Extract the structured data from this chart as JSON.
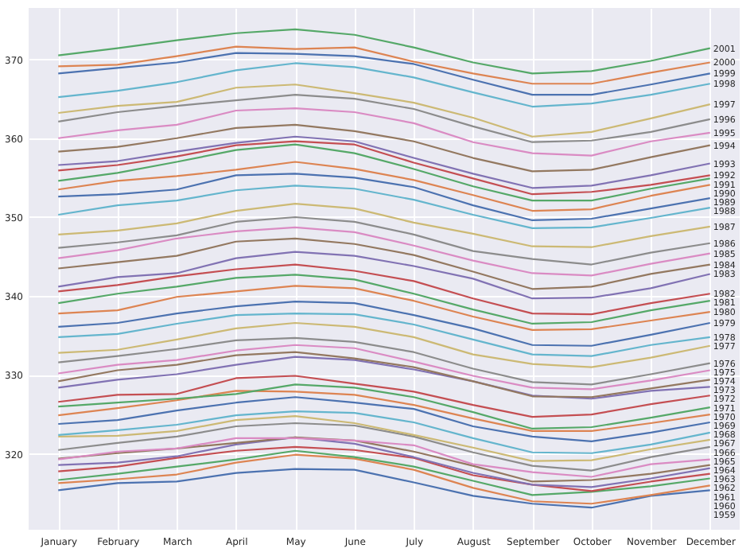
{
  "chart_data": {
    "type": "line",
    "categories": [
      "January",
      "February",
      "March",
      "April",
      "May",
      "June",
      "July",
      "August",
      "September",
      "October",
      "November",
      "December"
    ],
    "ylim": [
      310.4,
      376.5
    ],
    "yticks": [
      320,
      330,
      340,
      350,
      360,
      370
    ],
    "grid": true,
    "series": [
      {
        "name": "1959",
        "color": "#4c72b0",
        "values": [
          315.4,
          316.3,
          316.5,
          317.6,
          318.1,
          318.0,
          316.4,
          314.7,
          313.7,
          313.2,
          314.7,
          315.4
        ]
      },
      {
        "name": "1960",
        "color": "#dd8452",
        "values": [
          316.3,
          316.8,
          317.4,
          318.9,
          319.9,
          319.4,
          318.0,
          315.7,
          314.0,
          313.7,
          314.8,
          316.0
        ]
      },
      {
        "name": "1961",
        "color": "#55a868",
        "values": [
          316.7,
          317.5,
          318.4,
          319.3,
          320.4,
          319.6,
          318.4,
          316.6,
          314.8,
          315.2,
          315.9,
          316.9
        ]
      },
      {
        "name": "1962",
        "color": "#c44e52",
        "values": [
          317.8,
          318.4,
          319.5,
          320.4,
          320.9,
          320.5,
          319.5,
          317.3,
          316.1,
          315.3,
          316.5,
          317.5
        ]
      },
      {
        "name": "1963",
        "color": "#8172b3",
        "values": [
          318.6,
          318.9,
          319.7,
          321.2,
          322.1,
          321.3,
          319.6,
          317.6,
          316.1,
          315.8,
          316.9,
          318.2
        ]
      },
      {
        "name": "1964",
        "color": "#937860",
        "values": [
          319.4,
          320.1,
          320.7,
          321.4,
          322.1,
          321.7,
          320.3,
          318.5,
          316.5,
          316.7,
          317.5,
          318.6
        ]
      },
      {
        "name": "1965",
        "color": "#da8bc3",
        "values": [
          319.3,
          320.3,
          320.7,
          322.0,
          322.0,
          321.7,
          321.1,
          318.7,
          317.7,
          317.1,
          318.7,
          319.3
        ]
      },
      {
        "name": "1966",
        "color": "#8c8c8c",
        "values": [
          320.5,
          321.4,
          322.2,
          323.5,
          323.9,
          323.6,
          322.2,
          320.2,
          318.5,
          317.9,
          319.6,
          320.9
        ]
      },
      {
        "name": "1967",
        "color": "#ccb974",
        "values": [
          322.2,
          322.3,
          322.9,
          324.3,
          324.8,
          323.9,
          322.4,
          320.8,
          319.1,
          319.2,
          320.6,
          321.8
        ]
      },
      {
        "name": "1968",
        "color": "#64b5cd",
        "values": [
          322.4,
          323.0,
          323.7,
          324.9,
          325.4,
          325.2,
          324.0,
          322.0,
          320.2,
          320.1,
          321.2,
          322.7
        ]
      },
      {
        "name": "1969",
        "color": "#4c72b0",
        "values": [
          323.8,
          324.3,
          325.5,
          326.5,
          327.2,
          326.5,
          325.7,
          323.5,
          322.2,
          321.6,
          322.7,
          324.0
        ]
      },
      {
        "name": "1970",
        "color": "#dd8452",
        "values": [
          324.9,
          325.8,
          326.8,
          328.0,
          327.9,
          327.5,
          326.2,
          324.5,
          322.9,
          322.9,
          323.9,
          325.0
        ]
      },
      {
        "name": "1971",
        "color": "#55a868",
        "values": [
          326.0,
          326.5,
          327.0,
          327.6,
          328.8,
          328.4,
          327.2,
          325.3,
          323.2,
          323.4,
          324.6,
          325.9
        ]
      },
      {
        "name": "1972",
        "color": "#c44e52",
        "values": [
          326.6,
          327.5,
          327.6,
          329.6,
          329.9,
          328.9,
          327.9,
          326.2,
          324.7,
          325.0,
          326.3,
          327.4
        ]
      },
      {
        "name": "1973",
        "color": "#8172b3",
        "values": [
          328.4,
          329.4,
          330.1,
          331.3,
          332.3,
          331.9,
          330.7,
          329.2,
          327.4,
          327.0,
          328.0,
          328.5
        ]
      },
      {
        "name": "1974",
        "color": "#937860",
        "values": [
          329.2,
          330.6,
          331.3,
          332.5,
          332.9,
          332.1,
          331.0,
          329.2,
          327.3,
          327.2,
          328.3,
          329.4
        ]
      },
      {
        "name": "1975",
        "color": "#da8bc3",
        "values": [
          330.2,
          331.3,
          331.9,
          333.1,
          333.8,
          333.4,
          331.7,
          329.9,
          328.4,
          328.2,
          329.3,
          330.6
        ]
      },
      {
        "name": "1976",
        "color": "#8c8c8c",
        "values": [
          331.6,
          332.4,
          333.3,
          334.4,
          334.7,
          334.2,
          332.9,
          330.8,
          329.1,
          328.8,
          330.1,
          331.5
        ]
      },
      {
        "name": "1977",
        "color": "#ccb974",
        "values": [
          332.8,
          333.2,
          334.5,
          335.9,
          336.6,
          336.1,
          334.8,
          332.6,
          331.4,
          331.0,
          332.2,
          333.7
        ]
      },
      {
        "name": "1978",
        "color": "#64b5cd",
        "values": [
          334.8,
          335.2,
          336.5,
          337.6,
          337.8,
          337.7,
          336.4,
          334.5,
          332.6,
          332.4,
          333.8,
          334.8
        ]
      },
      {
        "name": "1979",
        "color": "#4c72b0",
        "values": [
          336.1,
          336.6,
          337.8,
          338.7,
          339.3,
          339.1,
          337.6,
          335.9,
          333.8,
          333.7,
          335.1,
          336.6
        ]
      },
      {
        "name": "1980",
        "color": "#dd8452",
        "values": [
          337.8,
          338.2,
          339.9,
          340.6,
          341.3,
          341.0,
          339.4,
          337.4,
          335.7,
          335.8,
          336.9,
          338.0
        ]
      },
      {
        "name": "1981",
        "color": "#55a868",
        "values": [
          339.1,
          340.3,
          341.2,
          342.3,
          342.7,
          342.1,
          340.3,
          338.3,
          336.5,
          336.7,
          338.2,
          339.4
        ]
      },
      {
        "name": "1982",
        "color": "#c44e52",
        "values": [
          340.6,
          341.4,
          342.5,
          343.4,
          344.0,
          343.2,
          341.9,
          339.7,
          337.8,
          337.7,
          339.1,
          340.3
        ]
      },
      {
        "name": "1983",
        "color": "#8172b3",
        "values": [
          341.2,
          342.4,
          342.9,
          344.8,
          345.6,
          345.1,
          343.8,
          342.2,
          339.7,
          339.8,
          341.0,
          342.8
        ]
      },
      {
        "name": "1984",
        "color": "#937860",
        "values": [
          343.5,
          344.3,
          345.1,
          346.9,
          347.3,
          346.6,
          345.2,
          343.1,
          340.9,
          341.2,
          342.8,
          344.0
        ]
      },
      {
        "name": "1985",
        "color": "#da8bc3",
        "values": [
          344.8,
          345.8,
          347.3,
          348.2,
          348.7,
          348.1,
          346.4,
          344.5,
          342.9,
          342.6,
          344.1,
          345.4
        ]
      },
      {
        "name": "1986",
        "color": "#8c8c8c",
        "values": [
          346.1,
          346.8,
          347.7,
          349.4,
          350.0,
          349.4,
          347.8,
          345.7,
          344.7,
          344.0,
          345.5,
          346.7
        ]
      },
      {
        "name": "1987",
        "color": "#ccb974",
        "values": [
          347.8,
          348.3,
          349.2,
          350.8,
          351.7,
          351.1,
          349.3,
          347.9,
          346.3,
          346.2,
          347.6,
          348.8
        ]
      },
      {
        "name": "1988",
        "color": "#64b5cd",
        "values": [
          350.3,
          351.5,
          352.1,
          353.4,
          354.0,
          353.6,
          352.2,
          350.3,
          348.6,
          348.7,
          349.9,
          351.2
        ]
      },
      {
        "name": "1989",
        "color": "#4c72b0",
        "values": [
          352.6,
          352.9,
          353.5,
          355.3,
          355.5,
          355.0,
          353.8,
          351.5,
          349.6,
          349.8,
          351.1,
          352.4
        ]
      },
      {
        "name": "1990",
        "color": "#dd8452",
        "values": [
          353.5,
          354.6,
          355.2,
          356.0,
          357.0,
          356.1,
          354.7,
          352.8,
          350.8,
          351.0,
          352.7,
          354.1
        ]
      },
      {
        "name": "1991",
        "color": "#55a868",
        "values": [
          354.6,
          355.6,
          357.0,
          358.5,
          359.2,
          358.1,
          356.1,
          353.9,
          352.1,
          352.1,
          353.6,
          354.9
        ]
      },
      {
        "name": "1992",
        "color": "#c44e52",
        "values": [
          355.9,
          356.6,
          357.7,
          359.1,
          359.6,
          359.2,
          356.9,
          354.9,
          352.9,
          353.2,
          354.1,
          355.3
        ]
      },
      {
        "name": "1993",
        "color": "#8172b3",
        "values": [
          356.6,
          357.1,
          358.3,
          359.4,
          360.2,
          359.6,
          357.5,
          355.5,
          353.7,
          354.0,
          355.3,
          356.8
        ]
      },
      {
        "name": "1994",
        "color": "#937860",
        "values": [
          358.3,
          358.9,
          360.0,
          361.3,
          361.7,
          360.9,
          359.6,
          357.5,
          355.8,
          356.0,
          357.6,
          359.1
        ]
      },
      {
        "name": "1995",
        "color": "#da8bc3",
        "values": [
          360.0,
          361.0,
          361.7,
          363.5,
          363.8,
          363.3,
          361.9,
          359.5,
          358.1,
          357.8,
          359.6,
          360.7
        ]
      },
      {
        "name": "1996",
        "color": "#8c8c8c",
        "values": [
          362.1,
          363.3,
          364.1,
          364.8,
          365.5,
          365.0,
          363.7,
          361.5,
          359.5,
          359.7,
          360.8,
          362.4
        ]
      },
      {
        "name": "1997",
        "color": "#ccb974",
        "values": [
          363.2,
          364.1,
          364.6,
          366.4,
          366.8,
          365.7,
          364.5,
          362.6,
          360.2,
          360.8,
          362.5,
          364.3
        ]
      },
      {
        "name": "1998",
        "color": "#64b5cd",
        "values": [
          365.2,
          366.0,
          367.1,
          368.6,
          369.5,
          369.0,
          367.7,
          365.8,
          364.0,
          364.4,
          365.5,
          366.9
        ]
      },
      {
        "name": "1999",
        "color": "#4c72b0",
        "values": [
          368.2,
          368.9,
          369.6,
          370.8,
          370.7,
          370.4,
          369.4,
          367.4,
          365.5,
          365.5,
          366.8,
          368.2
        ]
      },
      {
        "name": "2000",
        "color": "#dd8452",
        "values": [
          369.1,
          369.3,
          370.4,
          371.6,
          371.3,
          371.5,
          369.7,
          368.2,
          366.9,
          366.9,
          368.3,
          369.6
        ]
      },
      {
        "name": "2001",
        "color": "#55a868",
        "values": [
          370.5,
          371.4,
          372.4,
          373.3,
          373.8,
          373.1,
          371.5,
          369.6,
          368.2,
          368.5,
          369.8,
          371.4
        ]
      }
    ]
  }
}
